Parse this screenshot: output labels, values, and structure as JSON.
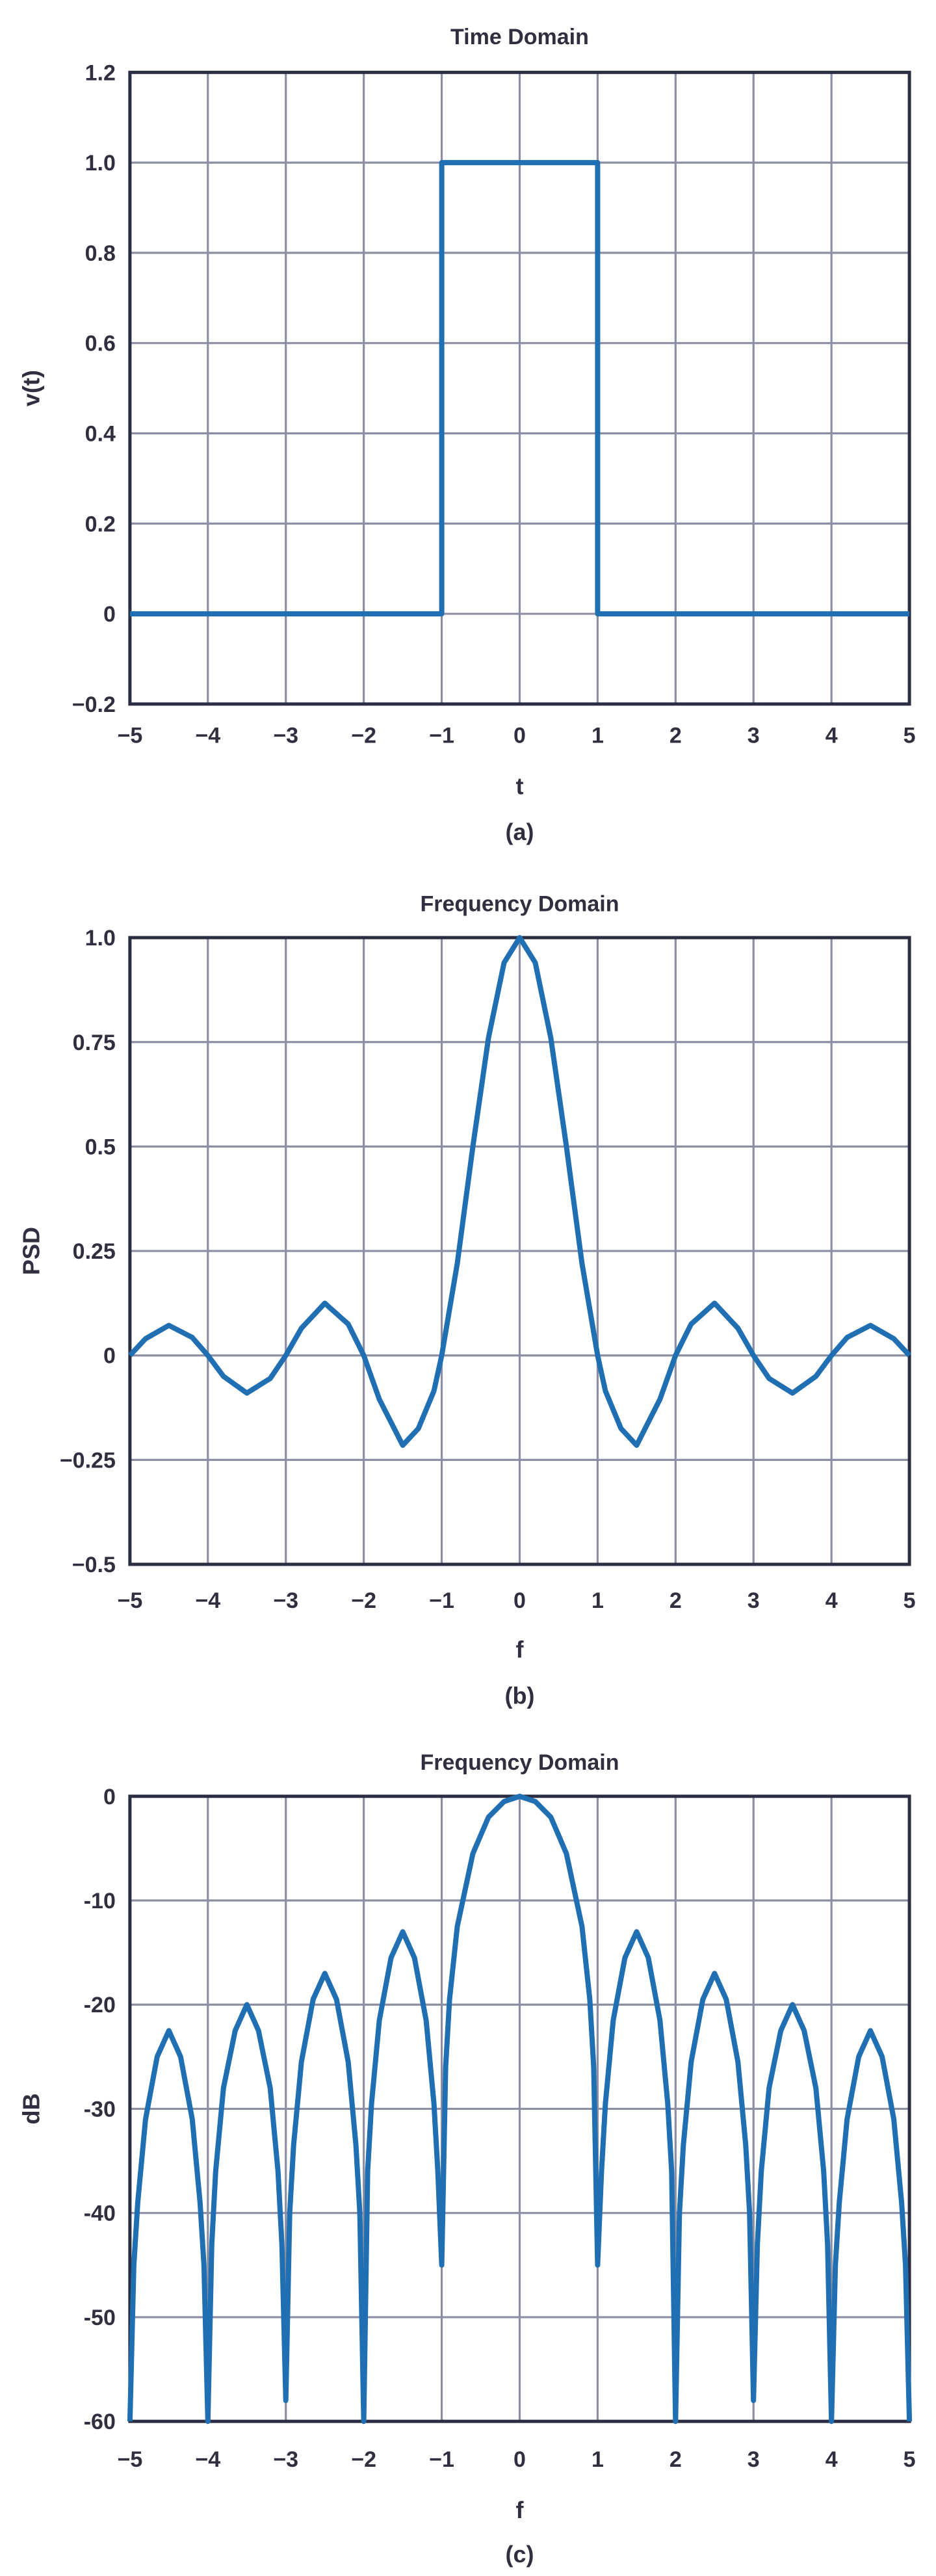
{
  "style": {
    "line_color": "#1f6fb2",
    "grid_color": "#8c8fa3",
    "frame_color": "#2b2d42",
    "text_color": "#2f2f3f"
  },
  "chart_data": [
    {
      "id": "a",
      "type": "line",
      "title": "Time Domain",
      "xlabel": "t",
      "ylabel": "v(t)",
      "caption": "(a)",
      "xlim": [
        -5,
        5
      ],
      "ylim": [
        -0.2,
        1.2
      ],
      "xticks": [
        -5,
        -4,
        -3,
        -2,
        -1,
        0,
        1,
        2,
        3,
        4,
        5
      ],
      "xtick_labels": [
        "−5",
        "−4",
        "−3",
        "−2",
        "−1",
        "0",
        "1",
        "2",
        "3",
        "4",
        "5"
      ],
      "yticks": [
        -0.2,
        0,
        0.2,
        0.4,
        0.6,
        0.8,
        1.0,
        1.2
      ],
      "ytick_labels": [
        "−0.2",
        "0",
        "0.2",
        "0.4",
        "0.6",
        "0.8",
        "1.0",
        "1.2"
      ],
      "grid": true,
      "series": [
        {
          "x": [
            -5,
            -1,
            -1,
            1,
            1,
            5
          ],
          "y": [
            0,
            0,
            1,
            1,
            0,
            0
          ]
        }
      ]
    },
    {
      "id": "b",
      "type": "line",
      "title": "Frequency Domain",
      "xlabel": "f",
      "ylabel": "PSD",
      "caption": "(b)",
      "xlim": [
        -5,
        5
      ],
      "ylim": [
        -0.5,
        1.0
      ],
      "xticks": [
        -5,
        -4,
        -3,
        -2,
        -1,
        0,
        1,
        2,
        3,
        4,
        5
      ],
      "xtick_labels": [
        "−5",
        "−4",
        "−3",
        "−2",
        "−1",
        "0",
        "1",
        "2",
        "3",
        "4",
        "5"
      ],
      "yticks": [
        -0.5,
        -0.25,
        0,
        0.25,
        0.5,
        0.75,
        1.0
      ],
      "ytick_labels": [
        "−0.5",
        "−0.25",
        "0",
        "0.25",
        "0.5",
        "0.75",
        "1.0"
      ],
      "grid": true,
      "series": [
        {
          "x": [
            -5,
            -4.8,
            -4.5,
            -4.2,
            -4,
            -3.8,
            -3.5,
            -3.2,
            -3,
            -2.8,
            -2.5,
            -2.2,
            -2,
            -1.8,
            -1.5,
            -1.3,
            -1.1,
            -1,
            -0.8,
            -0.6,
            -0.4,
            -0.2,
            0,
            0.2,
            0.4,
            0.6,
            0.8,
            1,
            1.1,
            1.3,
            1.5,
            1.8,
            2,
            2.2,
            2.5,
            2.8,
            3,
            3.2,
            3.5,
            3.8,
            4,
            4.2,
            4.5,
            4.8,
            5
          ],
          "y": [
            0,
            0.04,
            0.072,
            0.043,
            0,
            -0.05,
            -0.09,
            -0.055,
            0,
            0.065,
            0.125,
            0.075,
            0,
            -0.105,
            -0.215,
            -0.175,
            -0.085,
            0,
            0.22,
            0.5,
            0.76,
            0.94,
            1.0,
            0.94,
            0.76,
            0.5,
            0.22,
            0,
            -0.085,
            -0.175,
            -0.215,
            -0.105,
            0,
            0.075,
            0.125,
            0.065,
            0,
            -0.055,
            -0.09,
            -0.05,
            0,
            0.043,
            0.072,
            0.04,
            0
          ]
        }
      ]
    },
    {
      "id": "c",
      "type": "line",
      "title": "Frequency Domain",
      "xlabel": "f",
      "ylabel": "dB",
      "caption": "(c)",
      "xlim": [
        -5,
        5
      ],
      "ylim": [
        -60,
        0
      ],
      "xticks": [
        -5,
        -4,
        -3,
        -2,
        -1,
        0,
        1,
        2,
        3,
        4,
        5
      ],
      "xtick_labels": [
        "−5",
        "−4",
        "−3",
        "−2",
        "−1",
        "0",
        "1",
        "2",
        "3",
        "4",
        "5"
      ],
      "yticks": [
        -60,
        -50,
        -40,
        -30,
        -20,
        -10,
        0
      ],
      "ytick_labels": [
        "-60",
        "-50",
        "-40",
        "-30",
        "-20",
        "-10",
        "0"
      ],
      "grid": true,
      "series": [
        {
          "x": [
            -5,
            -4.95,
            -4.9,
            -4.8,
            -4.65,
            -4.5,
            -4.35,
            -4.2,
            -4.1,
            -4.05,
            -4,
            -3.95,
            -3.9,
            -3.8,
            -3.65,
            -3.5,
            -3.35,
            -3.2,
            -3.1,
            -3.05,
            -3,
            -2.95,
            -2.9,
            -2.8,
            -2.65,
            -2.5,
            -2.35,
            -2.2,
            -2.1,
            -2.05,
            -2,
            -1.95,
            -1.9,
            -1.8,
            -1.65,
            -1.5,
            -1.35,
            -1.2,
            -1.1,
            -1.05,
            -1,
            -0.95,
            -0.9,
            -0.8,
            -0.6,
            -0.4,
            -0.2,
            0,
            0.2,
            0.4,
            0.6,
            0.8,
            0.9,
            0.95,
            1,
            1.05,
            1.1,
            1.2,
            1.35,
            1.5,
            1.65,
            1.8,
            1.9,
            1.95,
            2,
            2.05,
            2.1,
            2.2,
            2.35,
            2.5,
            2.65,
            2.8,
            2.9,
            2.95,
            3,
            3.05,
            3.1,
            3.2,
            3.35,
            3.5,
            3.65,
            3.8,
            3.9,
            3.95,
            4,
            4.05,
            4.1,
            4.2,
            4.35,
            4.5,
            4.65,
            4.8,
            4.9,
            4.95,
            5
          ],
          "y": [
            -60,
            -45,
            -39,
            -31,
            -25,
            -22.5,
            -25,
            -31,
            -39,
            -45,
            -60,
            -43,
            -36,
            -28,
            -22.5,
            -20,
            -22.5,
            -28,
            -36,
            -43,
            -58,
            -40,
            -33.5,
            -25.5,
            -19.5,
            -17,
            -19.5,
            -25.5,
            -33.5,
            -40,
            -60,
            -36,
            -29.5,
            -21.5,
            -15.5,
            -13,
            -15.5,
            -21.5,
            -29.5,
            -36,
            -45,
            -26,
            -19.5,
            -12.5,
            -5.5,
            -2,
            -0.5,
            0,
            -0.5,
            -2,
            -5.5,
            -12.5,
            -19.5,
            -26,
            -45,
            -36,
            -29.5,
            -21.5,
            -15.5,
            -13,
            -15.5,
            -21.5,
            -29.5,
            -36,
            -60,
            -40,
            -33.5,
            -25.5,
            -19.5,
            -17,
            -19.5,
            -25.5,
            -33.5,
            -40,
            -58,
            -43,
            -36,
            -28,
            -22.5,
            -20,
            -22.5,
            -28,
            -36,
            -43,
            -60,
            -45,
            -39,
            -31,
            -25,
            -22.5,
            -25,
            -31,
            -39,
            -45,
            -60
          ]
        }
      ]
    }
  ]
}
